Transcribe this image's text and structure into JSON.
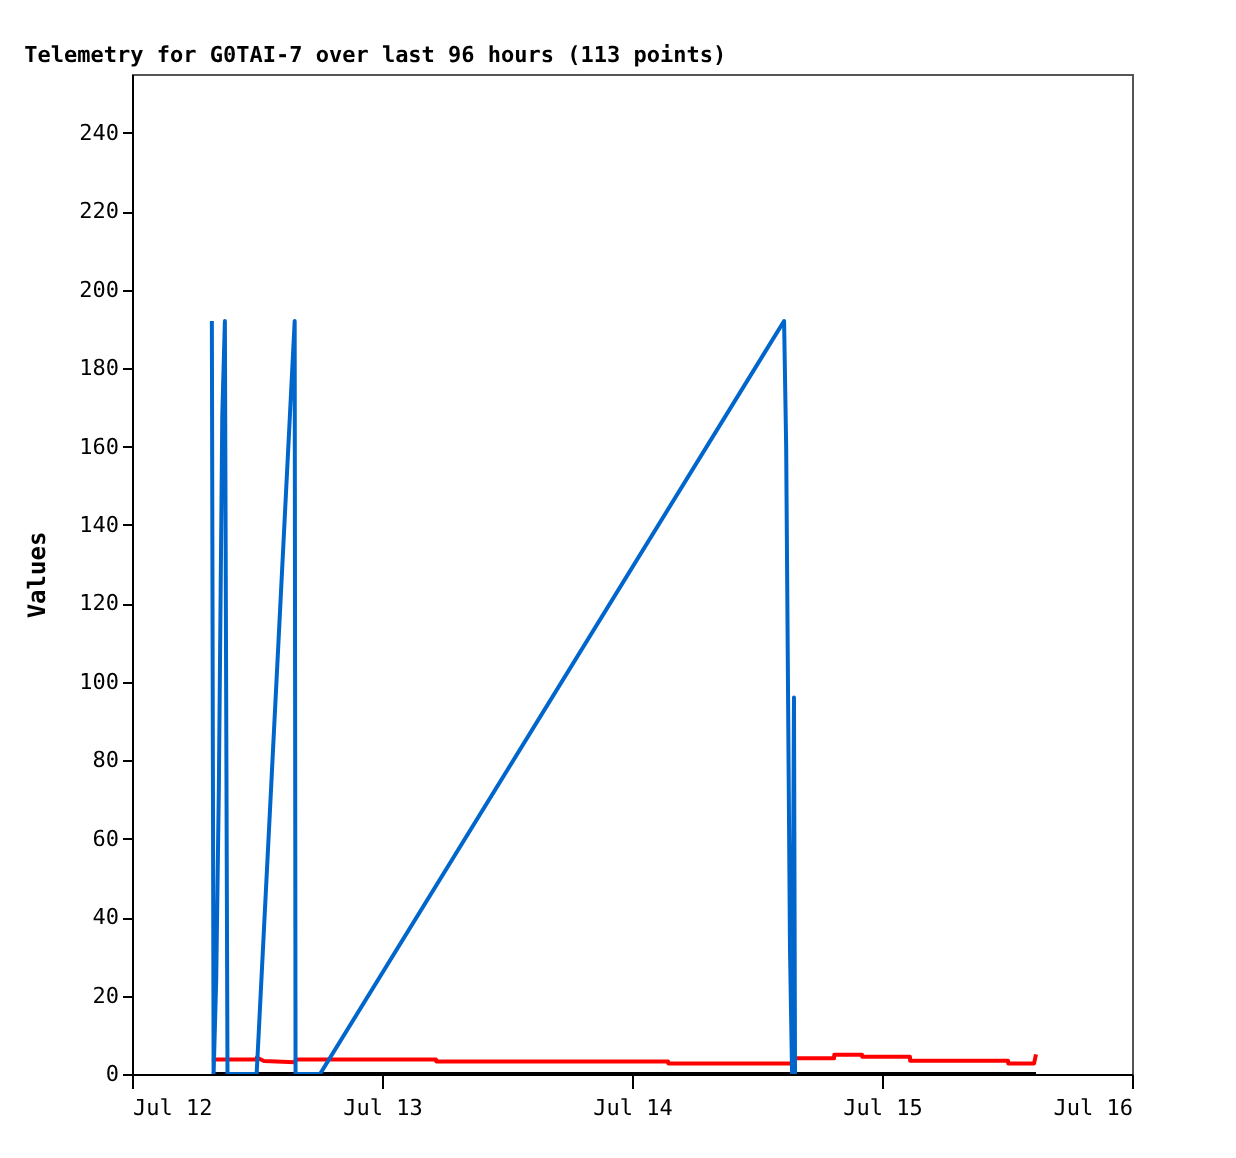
{
  "chart_data": {
    "type": "line",
    "title": "Telemetry for G0TAI-7 over last 96 hours (113 points)",
    "ylabel": "Values",
    "xlim": [
      "--07-12",
      "--07-16"
    ],
    "xticks": [
      {
        "value": "--07-12",
        "label": "Jul 12"
      },
      {
        "value": "--07-13",
        "label": "Jul 13"
      },
      {
        "value": "--07-14",
        "label": "Jul 14"
      },
      {
        "value": "--07-15",
        "label": "Jul 15"
      },
      {
        "value": "--07-16",
        "label": "Jul 16"
      }
    ],
    "ylim": [
      0,
      255
    ],
    "yticks": [
      0,
      20,
      40,
      60,
      80,
      100,
      120,
      140,
      160,
      180,
      200,
      220,
      240
    ],
    "grid": false,
    "line_style": "solid",
    "marker": "none",
    "series": [
      {
        "color": "#000000",
        "x": [
          "--07-12T07:40",
          "--07-15T14:47"
        ],
        "values": [
          0,
          0
        ]
      },
      {
        "color": "#ff0000",
        "x": [
          "--07-12T07:40",
          "--07-12T11:58",
          "--07-12T11:59",
          "--07-12T12:40",
          "--07-12T15:37",
          "--07-12T15:45",
          "--07-13T05:11",
          "--07-13T05:12",
          "--07-14T03:28",
          "--07-14T03:29",
          "--07-14T15:22",
          "--07-14T15:23",
          "--07-14T19:24",
          "--07-14T19:25",
          "--07-14T22:05",
          "--07-14T22:06",
          "--07-15T02:41",
          "--07-15T02:42",
          "--07-15T12:06",
          "--07-15T12:07",
          "--07-15T14:36",
          "--07-15T14:47"
        ],
        "values": [
          3.7,
          3.7,
          4.2,
          3.3,
          3.0,
          3.7,
          3.7,
          3.2,
          3.2,
          2.7,
          2.7,
          4.0,
          4.0,
          4.9,
          4.9,
          4.4,
          4.4,
          3.4,
          3.4,
          2.7,
          2.7,
          5.0
        ]
      },
      {
        "color": "#0066cc",
        "x": [
          "--07-12T07:40",
          "--07-12T07:50",
          "--07-12T08:05",
          "--07-12T08:20",
          "--07-12T08:30",
          "--07-12T08:40",
          "--07-12T08:55",
          "--07-12T09:10",
          "--07-12T11:58",
          "--07-12T15:37",
          "--07-12T15:42",
          "--07-12T18:03",
          "--07-14T14:36",
          "--07-14T14:48",
          "--07-14T14:59",
          "--07-14T15:10",
          "--07-14T15:22",
          "--07-14T15:33",
          "--07-14T15:39"
        ],
        "values": [
          192,
          0,
          24,
          72,
          120,
          168,
          192,
          0,
          0,
          192,
          0,
          0,
          192,
          160,
          96,
          32,
          0,
          96,
          0
        ]
      }
    ]
  }
}
